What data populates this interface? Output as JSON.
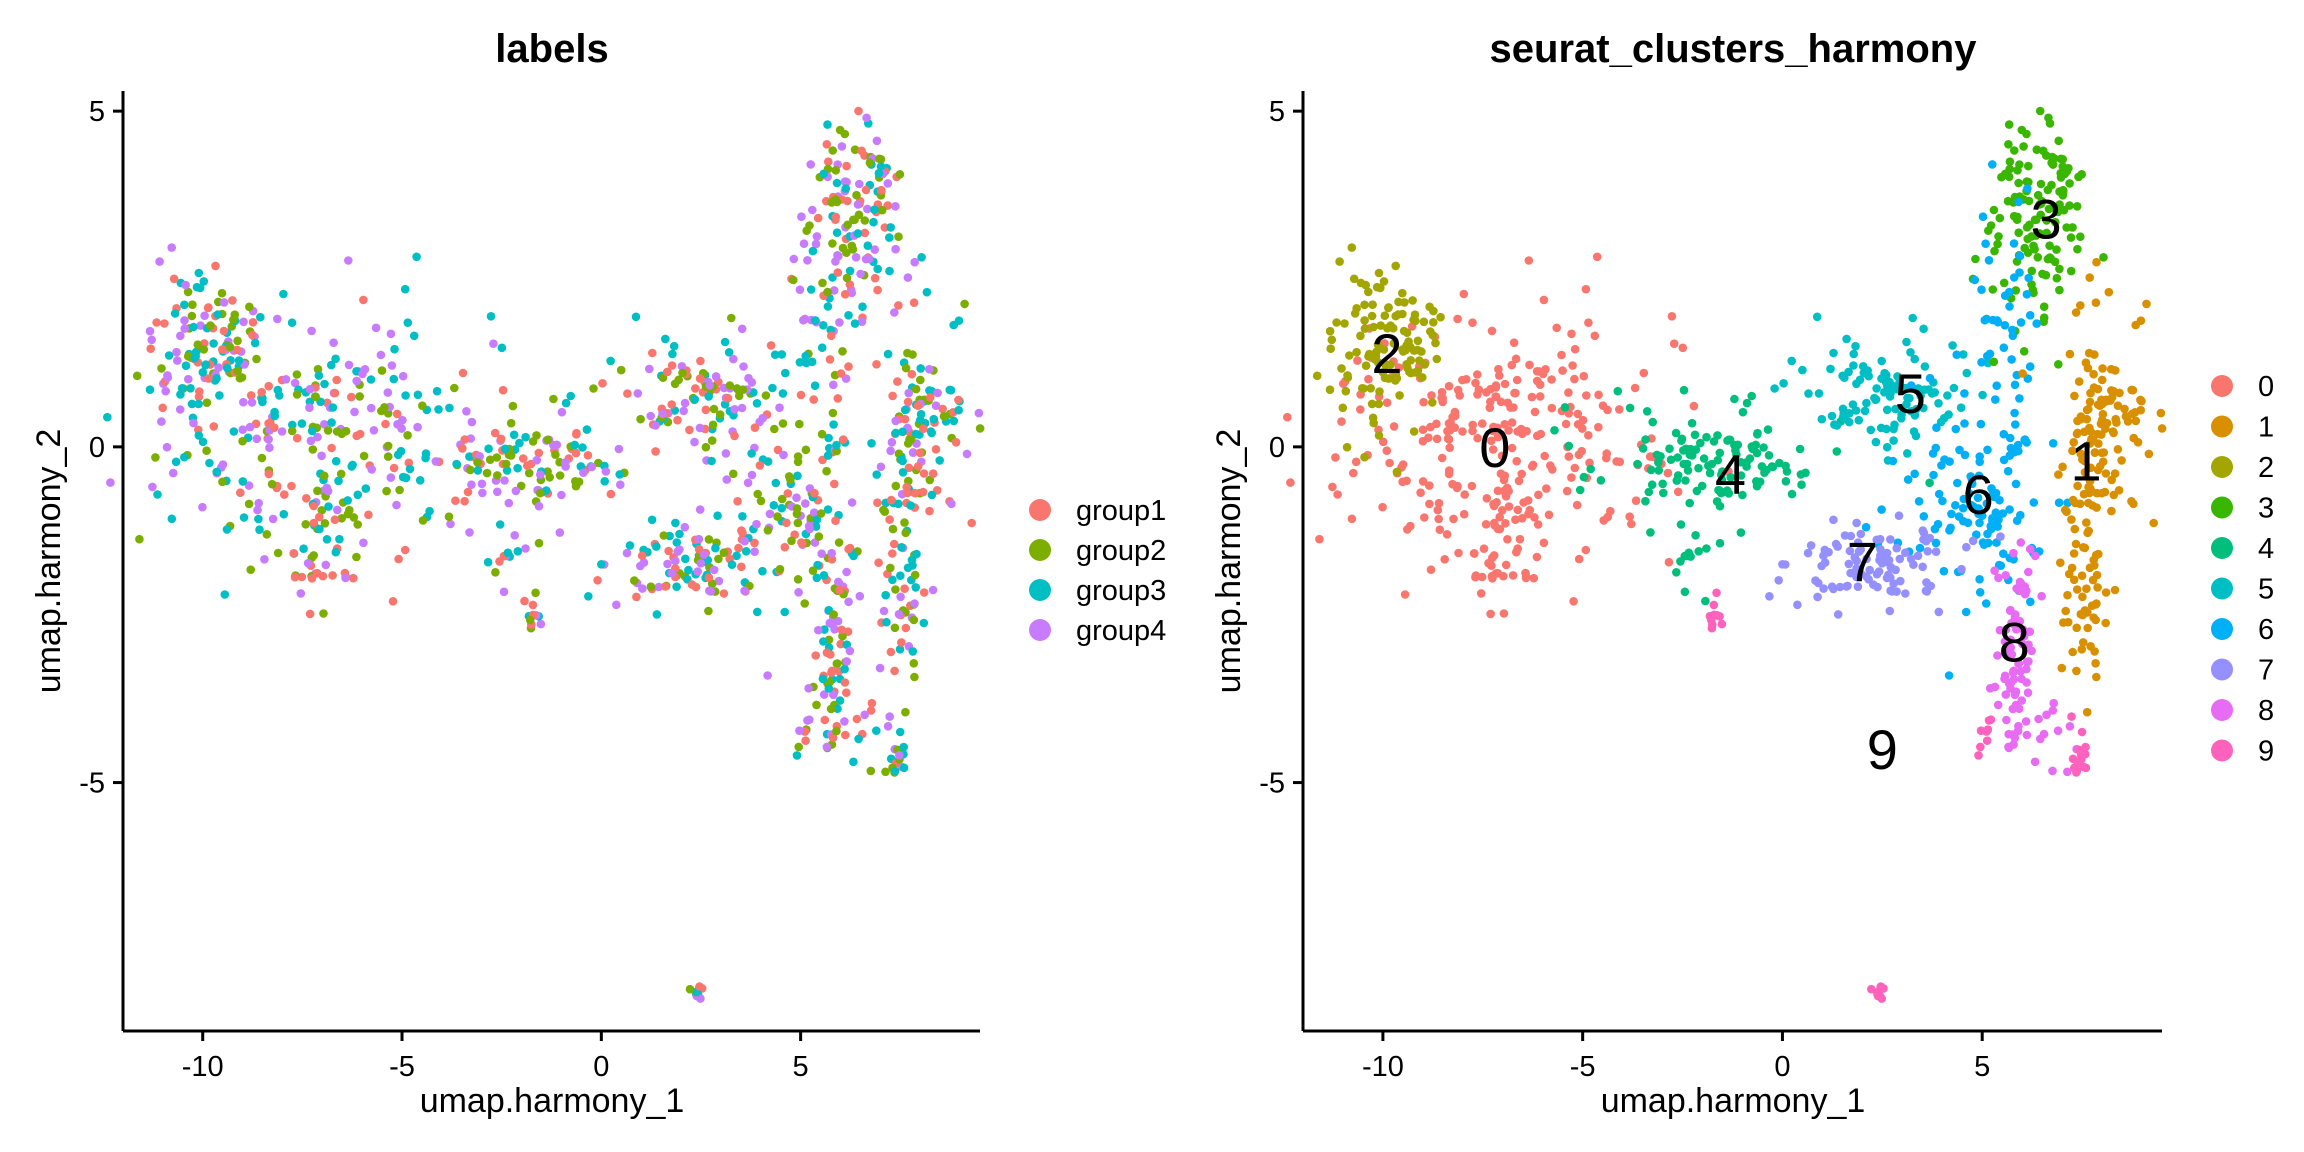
{
  "colors": {
    "group1": "#F8766D",
    "group2": "#7CAE00",
    "group3": "#00BFC4",
    "group4": "#C77CFF",
    "c0": "#F8766D",
    "c1": "#D89000",
    "c2": "#A3A500",
    "c3": "#39B600",
    "c4": "#00BF7D",
    "c5": "#00BFC4",
    "c6": "#00B0F6",
    "c7": "#9590FF",
    "c8": "#E76BF3",
    "c9": "#FF62BC"
  },
  "chart_data": [
    {
      "type": "scatter",
      "title": "labels",
      "xlabel": "umap.harmony_1",
      "ylabel": "umap.harmony_2",
      "xlim": [
        -12,
        9.5
      ],
      "ylim": [
        -8.7,
        5.3
      ],
      "x_ticks": [
        -10,
        -5,
        0,
        5
      ],
      "x_tick_labels": [
        "-10",
        "-5",
        "0",
        "5"
      ],
      "y_ticks": [
        -5,
        0,
        5
      ],
      "y_tick_labels": [
        "-5",
        "0",
        "5"
      ],
      "grid": false,
      "legend_position": "right",
      "legend": [
        "group1",
        "group2",
        "group3",
        "group4"
      ],
      "coloring": "mixed",
      "regions": [
        {
          "cluster": 0,
          "cx": -7.2,
          "cy": 0.1,
          "sx": 2.0,
          "sy": 0.9,
          "n": 260
        },
        {
          "cluster": 0,
          "cx": -7.0,
          "cy": -1.4,
          "sx": 0.4,
          "sy": 0.5,
          "n": 40
        },
        {
          "cluster": 2,
          "cx": -10.0,
          "cy": 1.5,
          "sx": 0.7,
          "sy": 0.7,
          "n": 120
        },
        {
          "cluster": 4,
          "cx": -2.0,
          "cy": -0.2,
          "sx": 1.4,
          "sy": 0.4,
          "n": 120
        },
        {
          "cluster": 4,
          "cx": -2.2,
          "cy": -1.7,
          "sx": 0.3,
          "sy": 0.3,
          "n": 12
        },
        {
          "cluster": 5,
          "cx": 2.7,
          "cy": 0.8,
          "sx": 1.1,
          "sy": 0.4,
          "n": 110
        },
        {
          "cluster": 3,
          "cx": 6.3,
          "cy": 3.4,
          "sx": 0.6,
          "sy": 0.7,
          "n": 130
        },
        {
          "cluster": 6,
          "cx": 4.9,
          "cy": -0.9,
          "sx": 0.9,
          "sy": 0.8,
          "n": 110
        },
        {
          "cluster": 6,
          "cx": 5.6,
          "cy": 1.6,
          "sx": 0.4,
          "sy": 1.2,
          "n": 50
        },
        {
          "cluster": 7,
          "cx": 2.3,
          "cy": -1.8,
          "sx": 1.1,
          "sy": 0.3,
          "n": 100
        },
        {
          "cluster": 1,
          "cx": 8.0,
          "cy": 0.3,
          "sx": 0.55,
          "sy": 0.8,
          "n": 120
        },
        {
          "cluster": 1,
          "cx": 7.5,
          "cy": -2.0,
          "sx": 0.25,
          "sy": 0.9,
          "n": 60
        },
        {
          "cluster": 8,
          "cx": 5.9,
          "cy": -2.9,
          "sx": 0.25,
          "sy": 0.8,
          "n": 70
        },
        {
          "cluster": 8,
          "cx": 6.3,
          "cy": -4.2,
          "sx": 0.5,
          "sy": 0.3,
          "n": 20
        },
        {
          "cluster": 9,
          "cx": 2.4,
          "cy": -8.1,
          "sx": 0.1,
          "sy": 0.06,
          "n": 12
        },
        {
          "cluster": 9,
          "cx": -1.7,
          "cy": -2.6,
          "sx": 0.15,
          "sy": 0.15,
          "n": 10
        },
        {
          "cluster": 9,
          "cx": 7.4,
          "cy": -4.6,
          "sx": 0.15,
          "sy": 0.2,
          "n": 14
        },
        {
          "cluster": 9,
          "cx": 5.0,
          "cy": -4.3,
          "sx": 0.12,
          "sy": 0.15,
          "n": 8
        }
      ],
      "cluster_labels": []
    },
    {
      "type": "scatter",
      "title": "seurat_clusters_harmony",
      "xlabel": "umap.harmony_1",
      "ylabel": "umap.harmony_2",
      "xlim": [
        -12,
        9.5
      ],
      "ylim": [
        -8.7,
        5.3
      ],
      "x_ticks": [
        -10,
        -5,
        0,
        5
      ],
      "x_tick_labels": [
        "-10",
        "-5",
        "0",
        "5"
      ],
      "y_ticks": [
        -5,
        0,
        5
      ],
      "y_tick_labels": [
        "-5",
        "0",
        "5"
      ],
      "grid": false,
      "legend_position": "right",
      "legend": [
        "0",
        "1",
        "2",
        "3",
        "4",
        "5",
        "6",
        "7",
        "8",
        "9"
      ],
      "coloring": "cluster",
      "regions": [
        {
          "cluster": 0,
          "cx": -7.2,
          "cy": 0.1,
          "sx": 2.0,
          "sy": 0.9,
          "n": 260
        },
        {
          "cluster": 0,
          "cx": -7.0,
          "cy": -1.4,
          "sx": 0.4,
          "sy": 0.5,
          "n": 40
        },
        {
          "cluster": 2,
          "cx": -10.0,
          "cy": 1.5,
          "sx": 0.7,
          "sy": 0.7,
          "n": 120
        },
        {
          "cluster": 4,
          "cx": -2.0,
          "cy": -0.2,
          "sx": 1.4,
          "sy": 0.4,
          "n": 120
        },
        {
          "cluster": 4,
          "cx": -2.2,
          "cy": -1.7,
          "sx": 0.3,
          "sy": 0.3,
          "n": 12
        },
        {
          "cluster": 5,
          "cx": 2.7,
          "cy": 0.8,
          "sx": 1.1,
          "sy": 0.4,
          "n": 110
        },
        {
          "cluster": 3,
          "cx": 6.3,
          "cy": 3.4,
          "sx": 0.6,
          "sy": 0.7,
          "n": 130
        },
        {
          "cluster": 6,
          "cx": 4.9,
          "cy": -0.9,
          "sx": 0.9,
          "sy": 0.8,
          "n": 110
        },
        {
          "cluster": 6,
          "cx": 5.6,
          "cy": 1.6,
          "sx": 0.4,
          "sy": 1.2,
          "n": 50
        },
        {
          "cluster": 7,
          "cx": 2.3,
          "cy": -1.8,
          "sx": 1.1,
          "sy": 0.3,
          "n": 100
        },
        {
          "cluster": 1,
          "cx": 8.0,
          "cy": 0.3,
          "sx": 0.55,
          "sy": 0.8,
          "n": 120
        },
        {
          "cluster": 1,
          "cx": 7.5,
          "cy": -2.0,
          "sx": 0.25,
          "sy": 0.9,
          "n": 60
        },
        {
          "cluster": 8,
          "cx": 5.9,
          "cy": -2.9,
          "sx": 0.25,
          "sy": 0.8,
          "n": 70
        },
        {
          "cluster": 8,
          "cx": 6.3,
          "cy": -4.2,
          "sx": 0.5,
          "sy": 0.3,
          "n": 20
        },
        {
          "cluster": 9,
          "cx": 2.4,
          "cy": -8.1,
          "sx": 0.1,
          "sy": 0.06,
          "n": 12
        },
        {
          "cluster": 9,
          "cx": -1.7,
          "cy": -2.6,
          "sx": 0.15,
          "sy": 0.15,
          "n": 10
        },
        {
          "cluster": 9,
          "cx": 7.4,
          "cy": -4.6,
          "sx": 0.15,
          "sy": 0.2,
          "n": 14
        },
        {
          "cluster": 9,
          "cx": 5.0,
          "cy": -4.3,
          "sx": 0.12,
          "sy": 0.15,
          "n": 8
        }
      ],
      "cluster_labels": [
        {
          "text": "0",
          "x": -7.2,
          "y": 0.0
        },
        {
          "text": "1",
          "x": 7.6,
          "y": -0.2
        },
        {
          "text": "2",
          "x": -9.9,
          "y": 1.4
        },
        {
          "text": "3",
          "x": 6.6,
          "y": 3.4
        },
        {
          "text": "4",
          "x": -1.3,
          "y": -0.4
        },
        {
          "text": "5",
          "x": 3.2,
          "y": 0.8
        },
        {
          "text": "6",
          "x": 4.9,
          "y": -0.7
        },
        {
          "text": "7",
          "x": 2.0,
          "y": -1.7
        },
        {
          "text": "8",
          "x": 5.8,
          "y": -2.9
        },
        {
          "text": "9",
          "x": 2.5,
          "y": -4.5
        }
      ]
    }
  ]
}
